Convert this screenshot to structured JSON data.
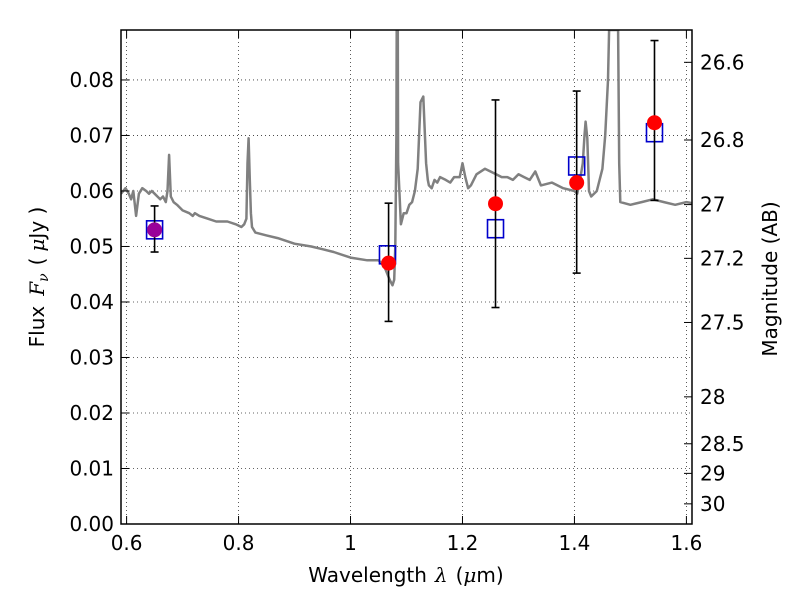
{
  "chart_data": {
    "type": "scatter",
    "xlabel_main": "Wavelength",
    "xlabel_symbol": "λ",
    "xlabel_unit_open": "(",
    "xlabel_unit_mu": "μ",
    "xlabel_unit_rest": "m)",
    "ylabel_main": "Flux",
    "ylabel_symbol": "F",
    "ylabel_subscript": "ν",
    "ylabel_unit_open": "(",
    "ylabel_unit_mu": "μ",
    "ylabel_unit_rest": "Jy )",
    "y2label": "Magnitude (AB)",
    "xlim": [
      0.59,
      1.61
    ],
    "ylim": [
      0.0,
      0.089
    ],
    "grid": true,
    "x_ticks": [
      0.6,
      0.8,
      1.0,
      1.2,
      1.4,
      1.6
    ],
    "x_tick_labels": [
      "0.6",
      "0.8",
      "1",
      "1.2",
      "1.4",
      "1.6"
    ],
    "y_ticks": [
      0.0,
      0.01,
      0.02,
      0.03,
      0.04,
      0.05,
      0.06,
      0.07,
      0.08
    ],
    "y_tick_labels": [
      "0.00",
      "0.01",
      "0.02",
      "0.03",
      "0.04",
      "0.05",
      "0.06",
      "0.07",
      "0.08"
    ],
    "mag_ticks": [
      26.6,
      26.8,
      27.0,
      27.2,
      27.5,
      28.0,
      28.5,
      29.0,
      30.0
    ],
    "mag_tick_labels": [
      "26.6",
      "26.8",
      "27",
      "27.2",
      "27.5",
      "28",
      "28.5",
      "29",
      "30"
    ],
    "colors": {
      "spectrum": "#808080",
      "observed": "#ff0000",
      "model": "#0000cc",
      "overlap": "#990099",
      "errorbar": "#000000"
    },
    "series": [
      {
        "name": "model spectrum",
        "kind": "line",
        "x": [
          0.59,
          0.598,
          0.604,
          0.608,
          0.612,
          0.617,
          0.622,
          0.628,
          0.635,
          0.64,
          0.645,
          0.65,
          0.655,
          0.66,
          0.665,
          0.67,
          0.673,
          0.676,
          0.679,
          0.684,
          0.69,
          0.7,
          0.712,
          0.718,
          0.722,
          0.73,
          0.745,
          0.76,
          0.78,
          0.795,
          0.805,
          0.81,
          0.814,
          0.816,
          0.818,
          0.82,
          0.822,
          0.824,
          0.83,
          0.85,
          0.87,
          0.9,
          0.93,
          0.95,
          0.97,
          1.0,
          1.03,
          1.05,
          1.06,
          1.07,
          1.075,
          1.078,
          1.08,
          1.082,
          1.0825,
          1.0845,
          1.085,
          1.09,
          1.095,
          1.1,
          1.105,
          1.11,
          1.115,
          1.12,
          1.125,
          1.13,
          1.135,
          1.138,
          1.14,
          1.145,
          1.15,
          1.155,
          1.16,
          1.17,
          1.178,
          1.185,
          1.195,
          1.2,
          1.205,
          1.21,
          1.215,
          1.225,
          1.24,
          1.25,
          1.26,
          1.27,
          1.28,
          1.29,
          1.3,
          1.31,
          1.32,
          1.33,
          1.34,
          1.36,
          1.38,
          1.4,
          1.405,
          1.41,
          1.415,
          1.418,
          1.42,
          1.423,
          1.426,
          1.43,
          1.44,
          1.45,
          1.455,
          1.46,
          1.462,
          1.478,
          1.48,
          1.482,
          1.5,
          1.52,
          1.54,
          1.56,
          1.58,
          1.6,
          1.61
        ],
        "y": [
          0.0595,
          0.0605,
          0.0595,
          0.0585,
          0.06,
          0.0555,
          0.0595,
          0.0605,
          0.06,
          0.0595,
          0.06,
          0.0595,
          0.059,
          0.0585,
          0.059,
          0.058,
          0.06,
          0.0665,
          0.059,
          0.058,
          0.0575,
          0.0565,
          0.056,
          0.0555,
          0.056,
          0.0555,
          0.055,
          0.0545,
          0.0545,
          0.054,
          0.0535,
          0.054,
          0.055,
          0.065,
          0.0695,
          0.062,
          0.056,
          0.0535,
          0.0525,
          0.052,
          0.0515,
          0.0505,
          0.05,
          0.0495,
          0.049,
          0.048,
          0.0475,
          0.0475,
          0.0465,
          0.044,
          0.043,
          0.044,
          0.05,
          0.07,
          0.089,
          0.089,
          0.065,
          0.054,
          0.056,
          0.056,
          0.0575,
          0.058,
          0.06,
          0.064,
          0.076,
          0.077,
          0.065,
          0.062,
          0.061,
          0.0605,
          0.062,
          0.0615,
          0.0625,
          0.062,
          0.0615,
          0.0625,
          0.0625,
          0.065,
          0.0625,
          0.0605,
          0.061,
          0.063,
          0.064,
          0.0635,
          0.063,
          0.0625,
          0.0625,
          0.062,
          0.063,
          0.0625,
          0.062,
          0.0635,
          0.061,
          0.0615,
          0.0605,
          0.06,
          0.0595,
          0.062,
          0.065,
          0.07,
          0.0725,
          0.0695,
          0.06,
          0.059,
          0.06,
          0.064,
          0.07,
          0.08,
          0.089,
          0.089,
          0.065,
          0.058,
          0.0575,
          0.058,
          0.0585,
          0.058,
          0.0575,
          0.058,
          0.0578
        ]
      },
      {
        "name": "model photometry",
        "kind": "open-square",
        "x": [
          0.65,
          1.066,
          1.259,
          1.404,
          1.543
        ],
        "y": [
          0.053,
          0.0485,
          0.0532,
          0.0645,
          0.0705
        ]
      },
      {
        "name": "observed photometry",
        "kind": "filled-circle-errorbar",
        "x": [
          0.65,
          1.068,
          1.259,
          1.404,
          1.543
        ],
        "y": [
          0.053,
          0.047,
          0.0577,
          0.0615,
          0.0723
        ],
        "err_low": [
          0.004,
          0.0105,
          0.0187,
          0.0163,
          0.014
        ],
        "err_high": [
          0.0043,
          0.0108,
          0.0187,
          0.0165,
          0.0148
        ]
      }
    ]
  }
}
